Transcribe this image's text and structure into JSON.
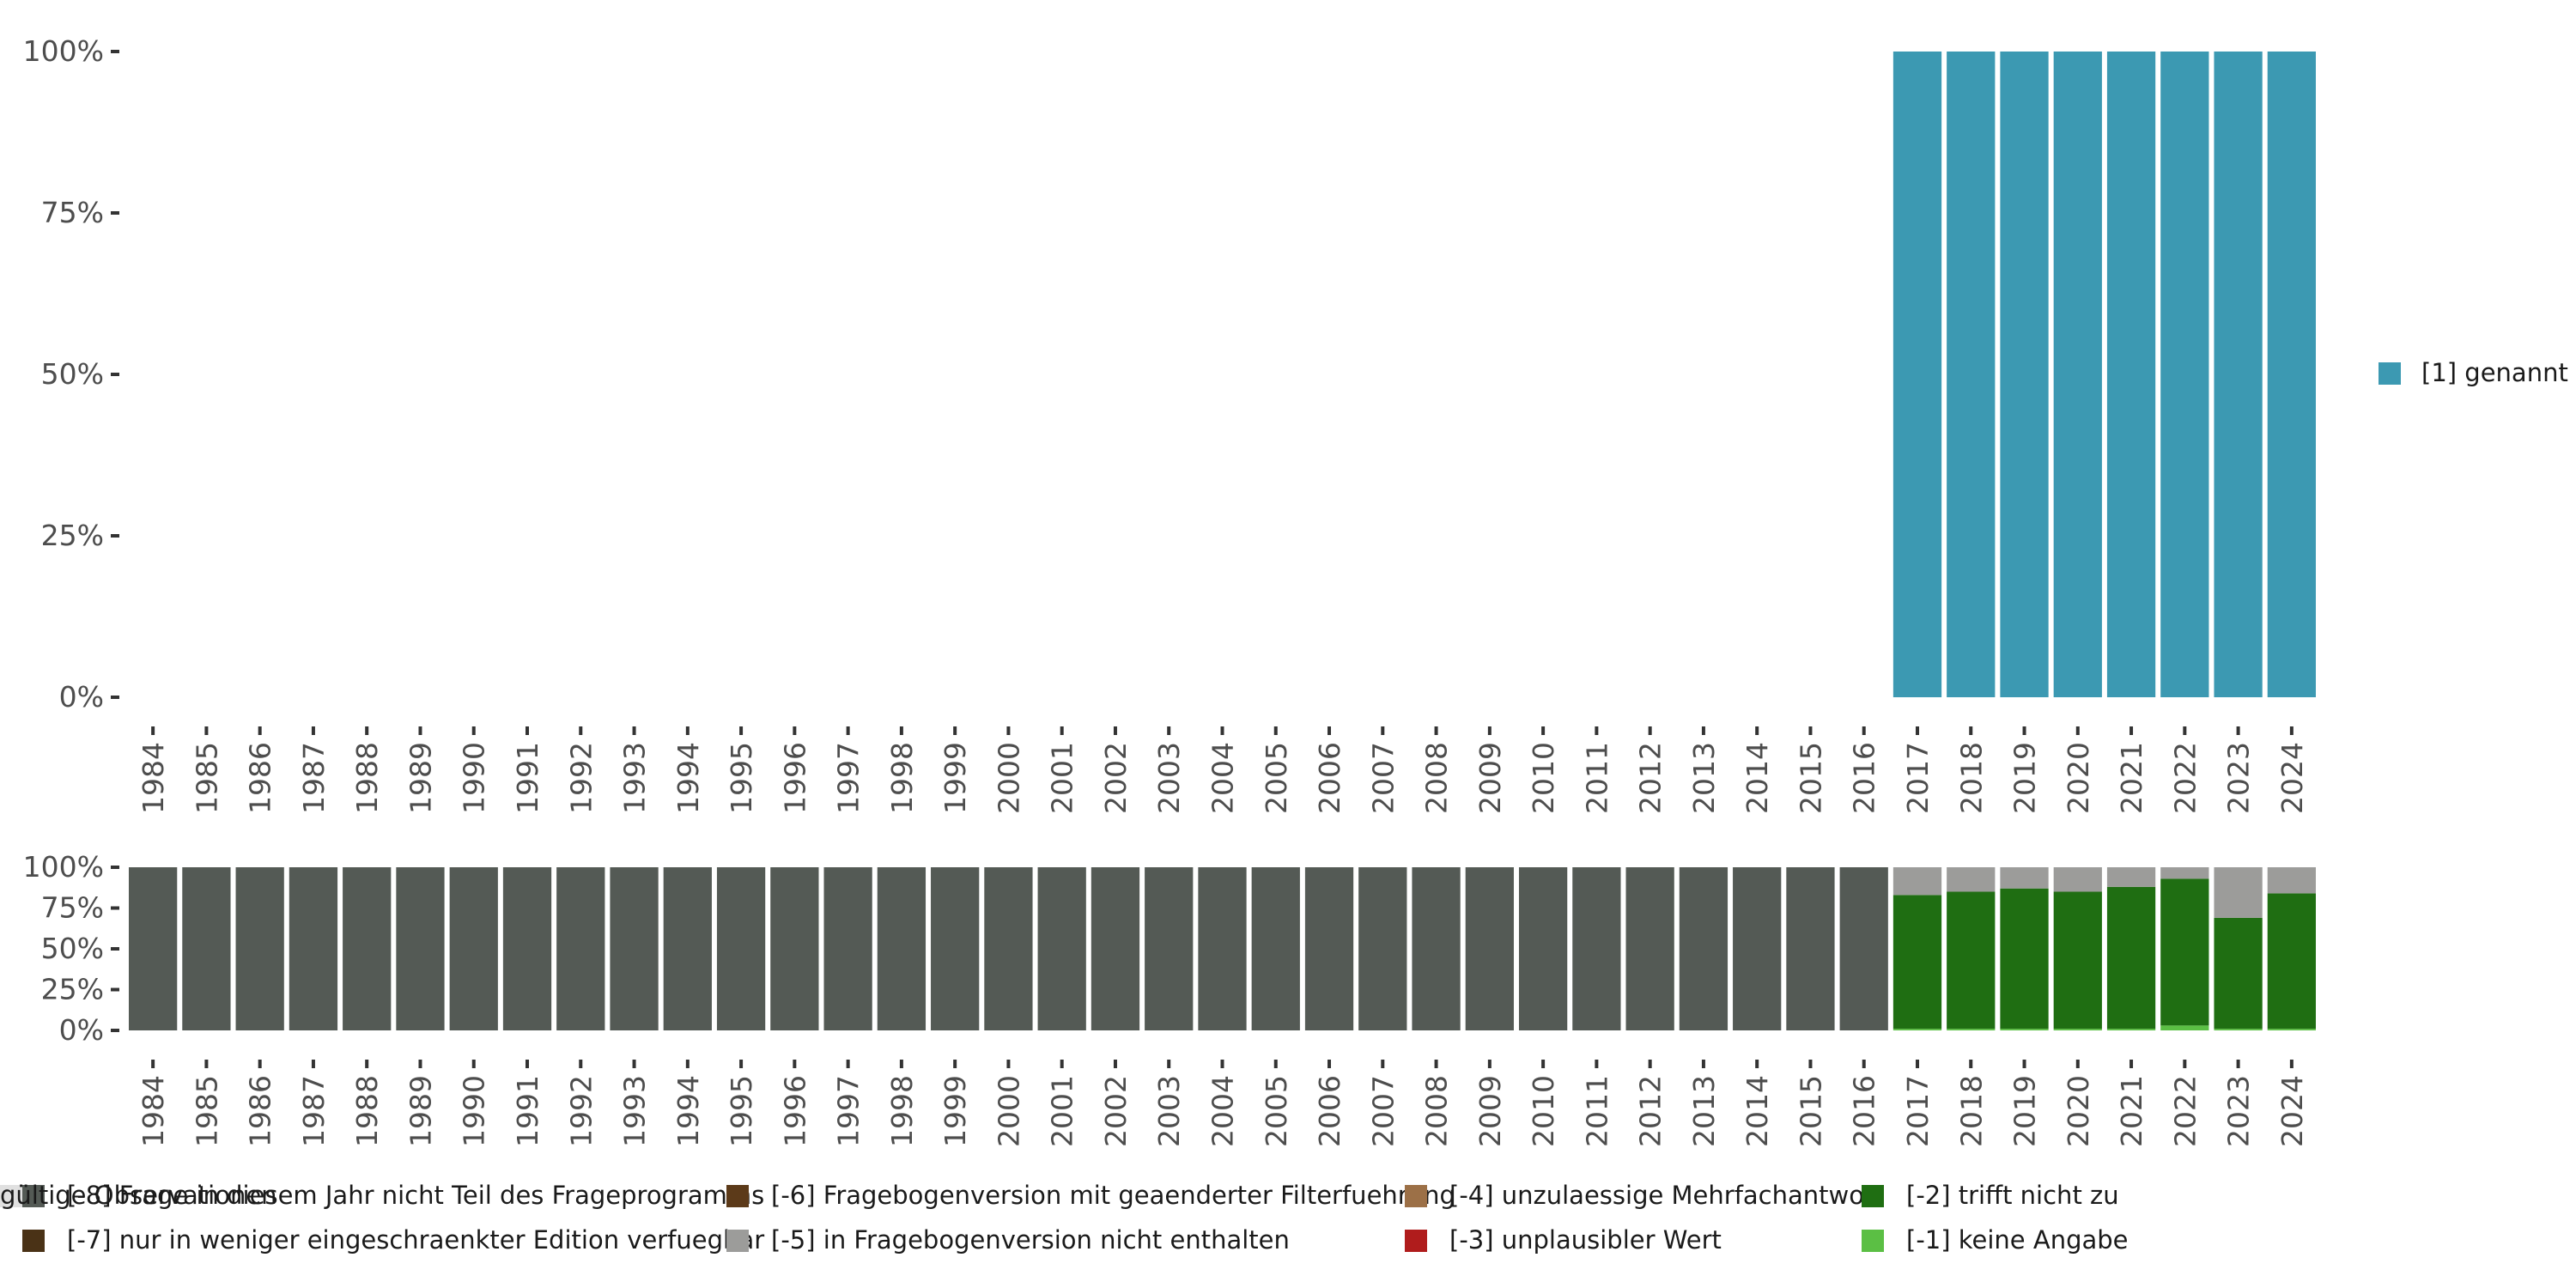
{
  "chart_data": [
    {
      "type": "bar",
      "name": "valid-values-chart",
      "stacked": true,
      "categories": [
        "1984",
        "1985",
        "1986",
        "1987",
        "1988",
        "1989",
        "1990",
        "1991",
        "1992",
        "1993",
        "1994",
        "1995",
        "1996",
        "1997",
        "1998",
        "1999",
        "2000",
        "2001",
        "2002",
        "2003",
        "2004",
        "2005",
        "2006",
        "2007",
        "2008",
        "2009",
        "2010",
        "2011",
        "2012",
        "2013",
        "2014",
        "2015",
        "2016",
        "2017",
        "2018",
        "2019",
        "2020",
        "2021",
        "2022",
        "2023",
        "2024"
      ],
      "yticks": [
        "0%",
        "25%",
        "50%",
        "75%",
        "100%"
      ],
      "ylim": [
        0,
        100
      ],
      "legend_position": "right",
      "series": [
        {
          "name": "[1] genannt",
          "color": "#3c99b2",
          "values": [
            0,
            0,
            0,
            0,
            0,
            0,
            0,
            0,
            0,
            0,
            0,
            0,
            0,
            0,
            0,
            0,
            0,
            0,
            0,
            0,
            0,
            0,
            0,
            0,
            0,
            0,
            0,
            0,
            0,
            0,
            0,
            0,
            0,
            100,
            100,
            100,
            100,
            100,
            100,
            100,
            100
          ]
        }
      ]
    },
    {
      "type": "bar",
      "name": "missing-values-chart",
      "stacked": true,
      "categories": [
        "1984",
        "1985",
        "1986",
        "1987",
        "1988",
        "1989",
        "1990",
        "1991",
        "1992",
        "1993",
        "1994",
        "1995",
        "1996",
        "1997",
        "1998",
        "1999",
        "2000",
        "2001",
        "2002",
        "2003",
        "2004",
        "2005",
        "2006",
        "2007",
        "2008",
        "2009",
        "2010",
        "2011",
        "2012",
        "2013",
        "2014",
        "2015",
        "2016",
        "2017",
        "2018",
        "2019",
        "2020",
        "2021",
        "2022",
        "2023",
        "2024"
      ],
      "yticks": [
        "0%",
        "25%",
        "50%",
        "75%",
        "100%"
      ],
      "ylim": [
        0,
        100
      ],
      "legend_position": "bottom",
      "series": [
        {
          "name": "[-1] keine Angabe",
          "color": "#5bbf44",
          "values": [
            0,
            0,
            0,
            0,
            0,
            0,
            0,
            0,
            0,
            0,
            0,
            0,
            0,
            0,
            0,
            0,
            0,
            0,
            0,
            0,
            0,
            0,
            0,
            0,
            0,
            0,
            0,
            0,
            0,
            0,
            0,
            0,
            0,
            1,
            1,
            1,
            1,
            1,
            3,
            1,
            1
          ]
        },
        {
          "name": "[-2] trifft nicht zu",
          "color": "#1f6e12",
          "values": [
            0,
            0,
            0,
            0,
            0,
            0,
            0,
            0,
            0,
            0,
            0,
            0,
            0,
            0,
            0,
            0,
            0,
            0,
            0,
            0,
            0,
            0,
            0,
            0,
            0,
            0,
            0,
            0,
            0,
            0,
            0,
            0,
            0,
            82,
            84,
            86,
            84,
            87,
            90,
            68,
            83
          ]
        },
        {
          "name": "[-5] in Fragebogenversion nicht enthalten",
          "color": "#9c9c9a",
          "values": [
            0,
            0,
            0,
            0,
            0,
            0,
            0,
            0,
            0,
            0,
            0,
            0,
            0,
            0,
            0,
            0,
            0,
            0,
            0,
            0,
            0,
            0,
            0,
            0,
            0,
            0,
            0,
            0,
            0,
            0,
            0,
            0,
            0,
            17,
            15,
            13,
            15,
            12,
            7,
            31,
            16
          ]
        },
        {
          "name": "[-8] Frage in diesem Jahr nicht Teil des Frageprogramms",
          "color": "#545a55",
          "values": [
            100,
            100,
            100,
            100,
            100,
            100,
            100,
            100,
            100,
            100,
            100,
            100,
            100,
            100,
            100,
            100,
            100,
            100,
            100,
            100,
            100,
            100,
            100,
            100,
            100,
            100,
            100,
            100,
            100,
            100,
            100,
            100,
            100,
            0,
            0,
            0,
            0,
            0,
            0,
            0,
            0
          ]
        }
      ]
    }
  ],
  "legend_right": [
    {
      "label": "[1] genannt",
      "color": "#3c99b2"
    }
  ],
  "legend_bottom": [
    {
      "label": "[-8] Frage in diesem Jahr nicht Teil des Frageprogramms",
      "color": "#545a55"
    },
    {
      "label": "[-7] nur in weniger eingeschraenkter Edition verfuegbar",
      "color": "#4a3216"
    },
    {
      "label": "[-6] Fragebogenversion mit geaenderter Filterfuehrung",
      "color": "#5c3a19"
    },
    {
      "label": "[-5] in Fragebogenversion nicht enthalten",
      "color": "#9c9c9a"
    },
    {
      "label": "[-4] unzulaessige Mehrfachantwort",
      "color": "#9c7047"
    },
    {
      "label": "[-3] unplausibler Wert",
      "color": "#b01c1c"
    },
    {
      "label": "[-2] trifft nicht zu",
      "color": "#1f6e12"
    },
    {
      "label": "[-1] keine Angabe",
      "color": "#5bbf44"
    },
    {
      "label": "gültige Observationen",
      "color": "#e0e0e0"
    }
  ]
}
